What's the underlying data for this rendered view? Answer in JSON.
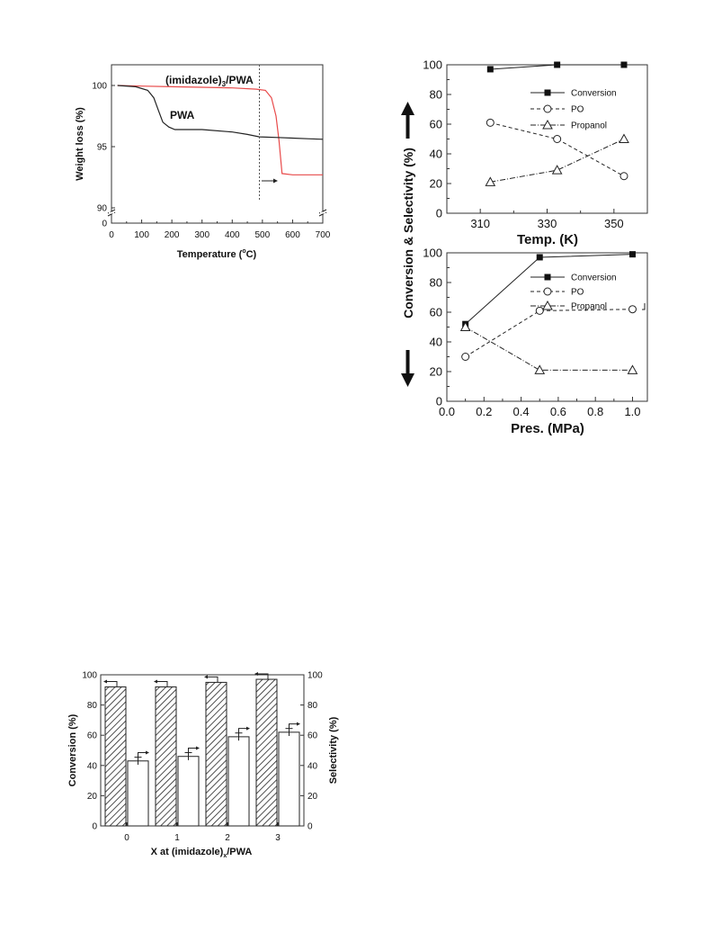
{
  "chart_data": [
    {
      "id": "tga",
      "type": "line",
      "xlabel": "Temperature (",
      "xlabel_unit": "C)",
      "ylabel": "Weight loss (%)",
      "xlim": [
        0,
        700
      ],
      "x_ticks": [
        "0",
        "100",
        "200",
        "300",
        "400",
        "500",
        "600",
        "700"
      ],
      "y_ticks_upper": [
        "100",
        "95"
      ],
      "y_ticks_lower": [
        "90",
        "0"
      ],
      "y_break": true,
      "vline_at": 490,
      "colors": {
        "imidazole": "#e84a4a",
        "pwa": "#222222"
      },
      "series": [
        {
          "name_prefix": "(imidazole)",
          "name_sub": "3",
          "name_suffix": "/PWA",
          "x": [
            20,
            100,
            200,
            300,
            400,
            480,
            510,
            530,
            545,
            555,
            565,
            600,
            650,
            700
          ],
          "y": [
            100,
            99.95,
            99.9,
            99.85,
            99.8,
            99.7,
            99.6,
            99.0,
            97.5,
            95.5,
            92.8,
            92.7,
            92.7,
            92.7
          ]
        },
        {
          "name": "PWA",
          "x": [
            20,
            80,
            120,
            140,
            155,
            170,
            190,
            210,
            300,
            400,
            450,
            490,
            550,
            600,
            650,
            700
          ],
          "y": [
            100,
            99.9,
            99.6,
            99.0,
            98.0,
            97.0,
            96.6,
            96.4,
            96.4,
            96.2,
            96.0,
            95.8,
            95.75,
            95.7,
            95.65,
            95.6
          ]
        }
      ]
    },
    {
      "id": "temp",
      "type": "line",
      "xlabel": "Temp. (K)",
      "shared_ylabel": "Conversion & Selectivity (%)",
      "xlim": [
        300,
        360
      ],
      "ylim": [
        0,
        100
      ],
      "x_ticks": [
        "310",
        "330",
        "350"
      ],
      "y_ticks": [
        "0",
        "20",
        "40",
        "60",
        "80",
        "100"
      ],
      "x": [
        313,
        333,
        353
      ],
      "series": [
        {
          "name": "Conversion",
          "values": [
            97,
            100,
            100
          ],
          "marker": "square-filled",
          "dash": "solid"
        },
        {
          "name": "PO",
          "values": [
            61,
            50,
            25
          ],
          "marker": "circle-open",
          "dash": "dashed"
        },
        {
          "name": "Propanol",
          "values": [
            21,
            29,
            50
          ],
          "marker": "triangle-open",
          "dash": "dashdot"
        }
      ]
    },
    {
      "id": "pres",
      "type": "line",
      "xlabel": "Pres. (MPa)",
      "xlim": [
        0.0,
        1.08
      ],
      "ylim": [
        0,
        100
      ],
      "x_ticks": [
        "0.0",
        "0.2",
        "0.4",
        "0.6",
        "0.8",
        "1.0"
      ],
      "y_ticks": [
        "0",
        "20",
        "40",
        "60",
        "80",
        "100"
      ],
      "x": [
        0.1,
        0.5,
        1.0
      ],
      "series": [
        {
          "name": "Conversion",
          "values": [
            52,
            97,
            99
          ],
          "marker": "square-filled",
          "dash": "solid"
        },
        {
          "name": "PO",
          "values": [
            30,
            61,
            62
          ],
          "marker": "circle-open",
          "dash": "dashed"
        },
        {
          "name": "Propanol",
          "values": [
            50,
            21,
            21
          ],
          "marker": "triangle-open",
          "dash": "dashdot"
        }
      ]
    },
    {
      "id": "bars",
      "type": "bar",
      "xlabel_prefix": "X at (imidazole)",
      "xlabel_sub": "x",
      "xlabel_suffix": "/PWA",
      "ylabel_left": "Conversion (%)",
      "ylabel_right": "Selectivity (%)",
      "ylim": [
        0,
        100
      ],
      "categories": [
        "0",
        "1",
        "2",
        "3"
      ],
      "y_ticks": [
        "0",
        "20",
        "40",
        "60",
        "80",
        "100"
      ],
      "series": [
        {
          "name": "Conversion",
          "values": [
            92,
            92,
            95,
            97
          ],
          "fill": "hatched"
        },
        {
          "name": "Selectivity",
          "values": [
            43,
            46,
            59,
            62
          ],
          "errors": [
            2.5,
            2.5,
            2.5,
            2.5
          ],
          "fill": "white"
        }
      ]
    }
  ]
}
